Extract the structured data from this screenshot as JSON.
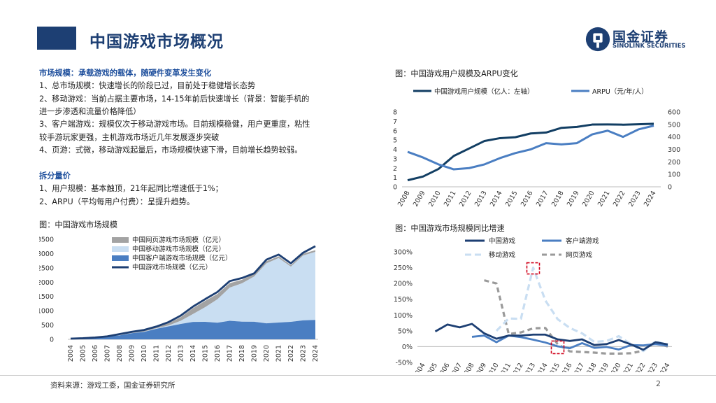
{
  "title": "中国游戏市场概况",
  "logo": {
    "cn": "国金证券",
    "en": "SINOLINK SECURITIES"
  },
  "text": {
    "h1": "市场规模：承载游戏的载体，随硬件变革发生变化",
    "p1": "1、总市场规模：快速增长的阶段已过，目前处于稳健增长态势",
    "p2a": "2、移动游戏：当前占据主要市场，14-15年前后快速增长（背景：智能手机的",
    "p2b": "进一步渗透和流量价格降低）",
    "p3a": "3、客户端游戏：规模仅次于移动游戏市场。目前规模稳健，用户更重度，粘性",
    "p3b": "较手游玩家更强，主机游戏市场近几年发展逐步突破",
    "p4": "4、页游：式微，移动游戏起量后，市场规模快速下滑，目前增长趋势较弱。",
    "h2": "拆分量价",
    "p5": "1、用户规模：基本触顶，21年起同比增速低于1%；",
    "p6": "2、ARPU（平均每用户付费）：呈提升趋势。"
  },
  "captions": {
    "c1": "图：中国游戏用户规模及ARPU变化",
    "c2": "图：中国游戏市场规模",
    "c3": "图：中国游戏市场规模同比增速"
  },
  "footer": {
    "source": "资料来源：游戏工委，国金证券研究所",
    "page": "2"
  },
  "colors": {
    "navy": "#1d3f73",
    "mid": "#4a7ec2",
    "light": "#c9def2",
    "gray": "#9a9a9a",
    "dark": "#123e63"
  },
  "chart_data": [
    {
      "id": "users_arpu",
      "type": "line",
      "title": "图：中国游戏用户规模及ARPU变化",
      "x": [
        "2008",
        "2009",
        "2010",
        "2011",
        "2012",
        "2013",
        "2014",
        "2015",
        "2016",
        "2017",
        "2018",
        "2019",
        "2020",
        "2021",
        "2022",
        "2023",
        "2024"
      ],
      "series": [
        {
          "name": "中国游戏用户规模（亿人：左轴）",
          "axis": "left",
          "values": [
            0.7,
            1.1,
            1.9,
            3.3,
            4.1,
            4.9,
            5.2,
            5.3,
            5.7,
            5.8,
            6.3,
            6.4,
            6.65,
            6.66,
            6.64,
            6.68,
            6.74
          ]
        },
        {
          "name": "ARPU（元/年/人）",
          "axis": "right",
          "values": [
            280,
            235,
            180,
            140,
            150,
            180,
            230,
            270,
            300,
            350,
            340,
            350,
            420,
            450,
            400,
            460,
            490
          ]
        }
      ],
      "yleft": {
        "min": 0,
        "max": 8,
        "ticks": [
          "0",
          "1",
          "2",
          "3",
          "4",
          "5",
          "6",
          "7",
          "8"
        ]
      },
      "yright": {
        "min": 0,
        "max": 600,
        "ticks": [
          "0",
          "100",
          "200",
          "300",
          "400",
          "500",
          "600"
        ]
      }
    },
    {
      "id": "market_size",
      "type": "area",
      "title": "图：中国游戏市场规模",
      "x": [
        "2004",
        "2005",
        "2006",
        "2007",
        "2008",
        "2009",
        "2010",
        "2011",
        "2012",
        "2013",
        "2014",
        "2015",
        "2016",
        "2017",
        "2018",
        "2019",
        "2020",
        "2021",
        "2022",
        "2023",
        "2024"
      ],
      "series": [
        {
          "name": "中国客户端游戏市场规模（亿元）",
          "values": [
            25,
            38,
            65,
            105,
            137,
            215,
            260,
            368,
            452,
            537,
            610,
            612,
            582,
            648,
            619,
            616,
            559,
            588,
            613,
            663,
            680
          ]
        },
        {
          "name": "中国移动游戏市场规模（亿元）",
          "values": [
            0,
            0,
            0,
            0,
            0,
            6,
            9,
            17,
            32,
            112,
            275,
            514,
            819,
            1161,
            1339,
            1581,
            2097,
            2255,
            1930,
            2269,
            2380
          ]
        },
        {
          "name": "中国网页游戏市场规模（亿元）",
          "values": [
            0,
            0,
            0,
            0,
            5,
            20,
            40,
            56,
            81,
            128,
            203,
            220,
            187,
            156,
            126,
            98,
            76,
            60,
            52,
            60,
            60
          ]
        },
        {
          "name": "中国游戏市场规模（亿元）",
          "values": [
            25,
            38,
            65,
            105,
            185,
            263,
            327,
            446,
            602,
            831,
            1145,
            1407,
            1656,
            2036,
            2144,
            2308,
            2787,
            2965,
            2659,
            3030,
            3258
          ]
        }
      ],
      "ylim": [
        0,
        3500
      ],
      "yticks": [
        "0",
        "500",
        "1000",
        "1500",
        "2000",
        "2500",
        "3000",
        "3500"
      ]
    },
    {
      "id": "yoy_growth",
      "type": "line",
      "title": "图：中国游戏市场规模同比增速",
      "x": [
        "2004",
        "2005",
        "2006",
        "2007",
        "2008",
        "2009",
        "2010",
        "2011",
        "2012",
        "2013",
        "2014",
        "2015",
        "2016",
        "2017",
        "2018",
        "2019",
        "2020",
        "2021",
        "2022",
        "2023",
        "2024"
      ],
      "series": [
        {
          "name": "中国游戏",
          "values": [
            null,
            48,
            70,
            61,
            72,
            42,
            25,
            35,
            35,
            38,
            38,
            23,
            18,
            23,
            5,
            8,
            21,
            7,
            -10,
            14,
            7
          ]
        },
        {
          "name": "客户端游戏",
          "values": [
            null,
            null,
            null,
            null,
            31,
            35,
            14,
            35,
            30,
            22,
            13,
            1,
            -5,
            11,
            -4,
            -1,
            -9,
            5,
            4,
            8,
            3
          ]
        },
        {
          "name": "移动游戏",
          "values": [
            null,
            null,
            null,
            null,
            null,
            null,
            50,
            89,
            88,
            250,
            146,
            87,
            59,
            42,
            15,
            18,
            33,
            8,
            -14,
            17,
            5
          ]
        },
        {
          "name": "网页游戏",
          "values": [
            null,
            null,
            null,
            null,
            null,
            210,
            200,
            40,
            45,
            58,
            59,
            8,
            -15,
            -17,
            -19,
            -22,
            -22,
            -21,
            -13,
            15,
            0
          ]
        }
      ],
      "ylim": [
        -50,
        300
      ],
      "yticks": [
        "-50%",
        "0%",
        "50%",
        "100%",
        "150%",
        "200%",
        "250%",
        "300%"
      ]
    }
  ]
}
